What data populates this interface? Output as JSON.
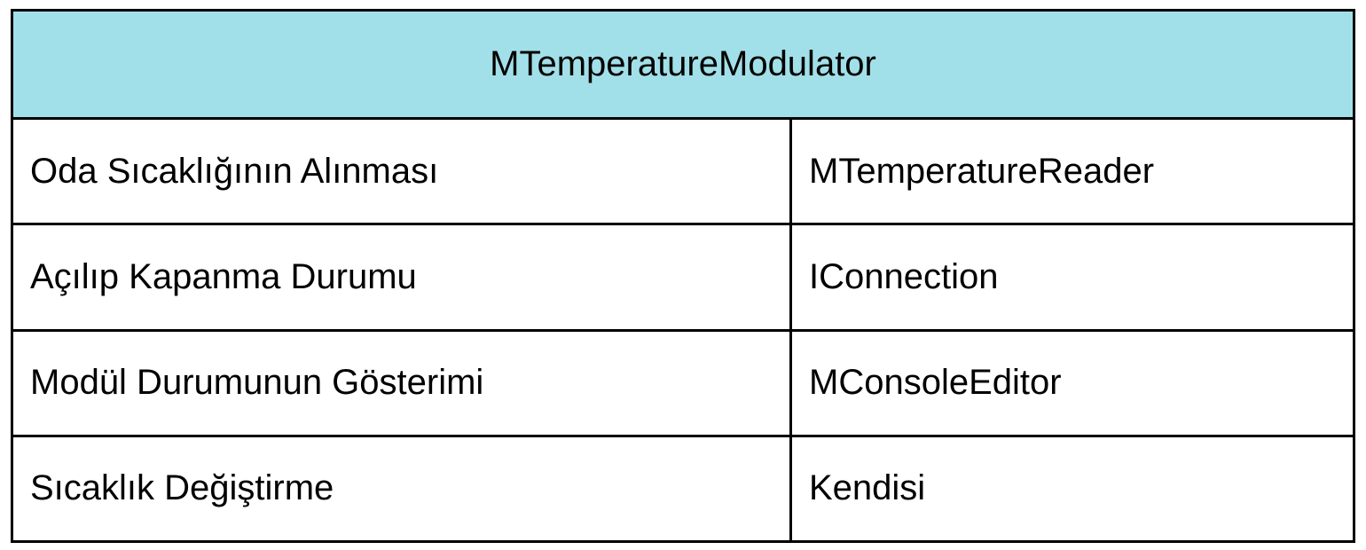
{
  "header": {
    "title": "MTemperatureModulator",
    "background_color": "#a2e0e9"
  },
  "rows": [
    {
      "responsibility": "Oda Sıcaklığının Alınması",
      "collaborator": "MTemperatureReader"
    },
    {
      "responsibility": "Açılıp Kapanma Durumu",
      "collaborator": "IConnection"
    },
    {
      "responsibility": "Modül Durumunun Gösterimi",
      "collaborator": "MConsoleEditor"
    },
    {
      "responsibility": "Sıcaklık Değiştirme",
      "collaborator": "Kendisi"
    }
  ]
}
